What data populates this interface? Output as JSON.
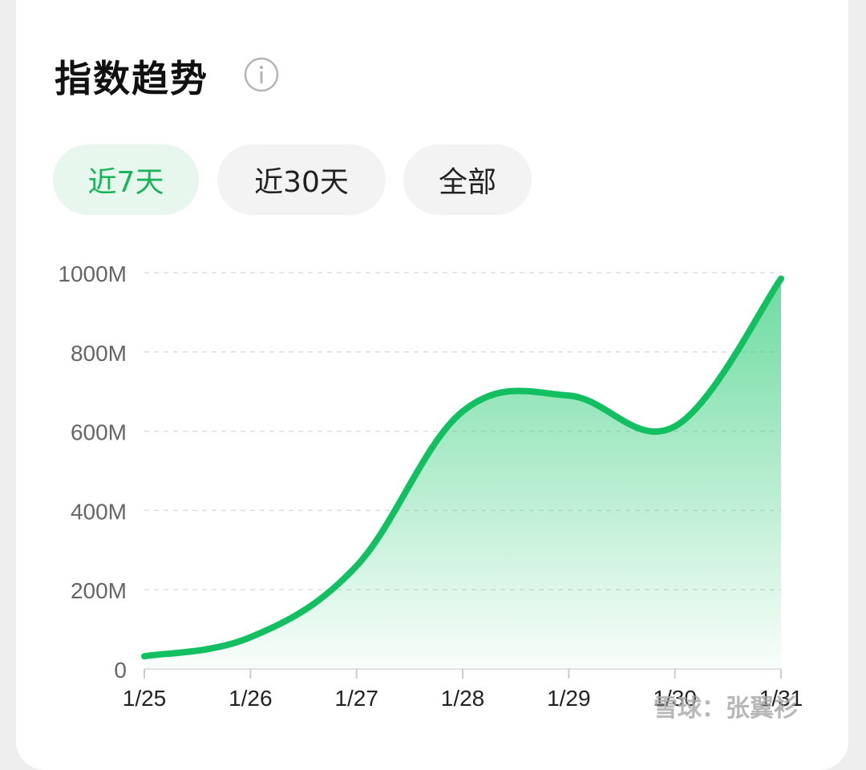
{
  "header": {
    "title": "指数趋势",
    "info_icon": "info-circle-icon"
  },
  "tabs": [
    {
      "label": "近7天",
      "active": true
    },
    {
      "label": "近30天",
      "active": false
    },
    {
      "label": "全部",
      "active": false
    }
  ],
  "colors": {
    "accent": "#19b45a",
    "line": "#12c062",
    "grid": "#dddddd",
    "tick": "#666666"
  },
  "watermark": "雪球：张翼衫",
  "chart_data": {
    "type": "area",
    "x": [
      "1/25",
      "1/26",
      "1/27",
      "1/28",
      "1/29",
      "1/30",
      "1/31"
    ],
    "y_ticks": [
      "0",
      "200M",
      "400M",
      "600M",
      "800M",
      "1000M"
    ],
    "ylim": [
      0,
      1000
    ],
    "y_unit": "M",
    "series": [
      {
        "values": [
          32,
          80,
          260,
          650,
          690,
          612,
          985
        ]
      }
    ],
    "grid": "horizontal-dashed",
    "legend": "none"
  }
}
